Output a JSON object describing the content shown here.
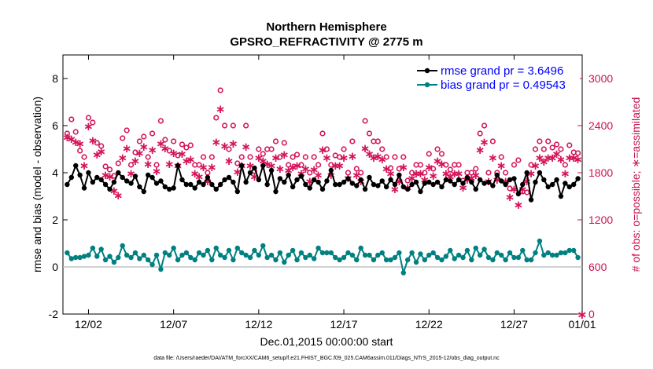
{
  "chart_data": {
    "type": "line",
    "title": "Northern Hemisphere",
    "subtitle": "GPSRO_REFRACTIVITY @ 2775 m",
    "xlabel": "Dec.01,2015 00:00:00 start",
    "ylabel": "rmse and bias (model - observation)",
    "ylabel_right": "# of obs: o=possible; ∗=assimilated",
    "xlim": [
      0.5,
      31.0
    ],
    "ylim": [
      -2,
      9
    ],
    "ylim_right": [
      0,
      3300
    ],
    "x_ticks": [
      2,
      7,
      12,
      17,
      22,
      27,
      31
    ],
    "x_tick_labels": [
      "12/02",
      "12/07",
      "12/12",
      "12/17",
      "12/22",
      "12/27",
      "01/01"
    ],
    "y_ticks": [
      -2,
      0,
      2,
      4,
      6,
      8
    ],
    "y_tick_labels": [
      "-2",
      "0",
      "2",
      "4",
      "6",
      "8"
    ],
    "y_right_ticks": [
      0,
      600,
      1200,
      1800,
      2400,
      3000
    ],
    "y_right_tick_labels": [
      "0",
      "600",
      "1200",
      "1800",
      "2400",
      "3000"
    ],
    "zero_line": 0,
    "legend_position": "top-right",
    "colors": {
      "rmse": "#000000",
      "bias": "#008080",
      "obs": "#d4145a",
      "zero": "#b8b8b8"
    },
    "series": [
      {
        "name": "rmse grand pr = 3.6496",
        "x": [
          0.75,
          1.0,
          1.25,
          1.5,
          1.75,
          2.0,
          2.25,
          2.5,
          2.75,
          3.0,
          3.25,
          3.5,
          3.75,
          4.0,
          4.25,
          4.5,
          4.75,
          5.0,
          5.25,
          5.5,
          5.75,
          6.0,
          6.25,
          6.5,
          6.75,
          7.0,
          7.25,
          7.5,
          7.75,
          8.0,
          8.25,
          8.5,
          8.75,
          9.0,
          9.25,
          9.5,
          9.75,
          10.0,
          10.25,
          10.5,
          10.75,
          11.0,
          11.25,
          11.5,
          11.75,
          12.0,
          12.25,
          12.5,
          12.75,
          13.0,
          13.25,
          13.5,
          13.75,
          14.0,
          14.25,
          14.5,
          14.75,
          15.0,
          15.25,
          15.5,
          15.75,
          16.0,
          16.25,
          16.5,
          16.75,
          17.0,
          17.25,
          17.5,
          17.75,
          18.0,
          18.25,
          18.5,
          18.75,
          19.0,
          19.25,
          19.5,
          19.75,
          20.0,
          20.25,
          20.5,
          20.75,
          21.0,
          21.25,
          21.5,
          21.75,
          22.0,
          22.25,
          22.5,
          22.75,
          23.0,
          23.25,
          23.5,
          23.75,
          24.0,
          24.25,
          24.5,
          24.75,
          25.0,
          25.25,
          25.5,
          25.75,
          26.0,
          26.25,
          26.5,
          26.75,
          27.0,
          27.25,
          27.5,
          27.75,
          28.0,
          28.25,
          28.5,
          28.75,
          29.0,
          29.25,
          29.5,
          29.75,
          30.0,
          30.25,
          30.5,
          30.75
        ],
        "values": [
          3.5,
          3.8,
          4.3,
          3.9,
          3.35,
          4.0,
          3.6,
          3.8,
          3.7,
          3.5,
          3.3,
          3.6,
          4.0,
          3.8,
          3.65,
          3.55,
          3.85,
          3.4,
          3.2,
          3.9,
          3.8,
          3.55,
          3.65,
          3.4,
          3.3,
          3.35,
          4.3,
          3.7,
          3.5,
          3.5,
          3.35,
          3.6,
          3.5,
          3.8,
          3.5,
          3.3,
          3.5,
          3.7,
          3.8,
          3.6,
          3.2,
          4.3,
          3.6,
          4.0,
          4.2,
          3.7,
          4.3,
          3.5,
          4.1,
          3.2,
          3.75,
          3.6,
          3.9,
          3.4,
          3.7,
          3.85,
          3.5,
          3.35,
          3.7,
          3.6,
          3.3,
          3.65,
          4.1,
          3.5,
          3.5,
          3.6,
          3.75,
          3.55,
          3.45,
          3.7,
          3.3,
          3.8,
          3.5,
          3.45,
          3.65,
          3.4,
          3.7,
          3.5,
          3.9,
          3.4,
          3.3,
          3.5,
          3.6,
          3.2,
          3.55,
          3.6,
          3.5,
          3.6,
          3.4,
          3.7,
          3.65,
          3.5,
          3.7,
          3.55,
          3.8,
          3.6,
          3.3,
          3.7,
          3.55,
          3.6,
          3.45,
          3.9,
          3.65,
          3.5,
          3.7,
          3.75,
          3.1,
          3.5,
          4.0,
          2.85,
          3.6,
          4.0,
          3.7,
          3.4,
          3.5,
          3.7,
          3.0,
          3.55,
          3.4,
          3.5,
          3.75
        ]
      },
      {
        "name": "bias grand pr = 0.49543",
        "x": [
          0.75,
          1.0,
          1.25,
          1.5,
          1.75,
          2.0,
          2.25,
          2.5,
          2.75,
          3.0,
          3.25,
          3.5,
          3.75,
          4.0,
          4.25,
          4.5,
          4.75,
          5.0,
          5.25,
          5.5,
          5.75,
          6.0,
          6.25,
          6.5,
          6.75,
          7.0,
          7.25,
          7.5,
          7.75,
          8.0,
          8.25,
          8.5,
          8.75,
          9.0,
          9.25,
          9.5,
          9.75,
          10.0,
          10.25,
          10.5,
          10.75,
          11.0,
          11.25,
          11.5,
          11.75,
          12.0,
          12.25,
          12.5,
          12.75,
          13.0,
          13.25,
          13.5,
          13.75,
          14.0,
          14.25,
          14.5,
          14.75,
          15.0,
          15.25,
          15.5,
          15.75,
          16.0,
          16.25,
          16.5,
          16.75,
          17.0,
          17.25,
          17.5,
          17.75,
          18.0,
          18.25,
          18.5,
          18.75,
          19.0,
          19.25,
          19.5,
          19.75,
          20.0,
          20.25,
          20.5,
          20.75,
          21.0,
          21.25,
          21.5,
          21.75,
          22.0,
          22.25,
          22.5,
          22.75,
          23.0,
          23.25,
          23.5,
          23.75,
          24.0,
          24.25,
          24.5,
          24.75,
          25.0,
          25.25,
          25.5,
          25.75,
          26.0,
          26.25,
          26.5,
          26.75,
          27.0,
          27.25,
          27.5,
          27.75,
          28.0,
          28.25,
          28.5,
          28.75,
          29.0,
          29.25,
          29.5,
          29.75,
          30.0,
          30.25,
          30.5,
          30.75
        ],
        "values": [
          0.6,
          0.35,
          0.4,
          0.4,
          0.45,
          0.5,
          0.8,
          0.45,
          0.75,
          0.3,
          0.45,
          0.2,
          0.4,
          0.9,
          0.5,
          0.4,
          0.6,
          0.35,
          0.5,
          0.3,
          0.1,
          0.5,
          -0.1,
          0.6,
          0.5,
          0.8,
          0.3,
          0.5,
          0.6,
          0.4,
          0.3,
          0.6,
          0.5,
          0.7,
          0.3,
          0.8,
          0.5,
          0.4,
          0.7,
          0.3,
          0.8,
          0.6,
          0.5,
          0.4,
          0.7,
          0.5,
          0.9,
          0.4,
          0.5,
          0.3,
          0.6,
          0.2,
          0.5,
          0.7,
          0.3,
          0.6,
          0.4,
          0.5,
          0.35,
          0.8,
          0.6,
          0.6,
          0.6,
          0.4,
          0.3,
          0.4,
          0.6,
          0.5,
          0.3,
          0.8,
          0.5,
          0.5,
          0.3,
          0.5,
          0.6,
          0.3,
          0.3,
          0.4,
          0.6,
          -0.25,
          0.3,
          0.6,
          0.2,
          0.55,
          0.3,
          0.5,
          0.6,
          0.4,
          0.3,
          0.45,
          0.7,
          0.35,
          0.5,
          0.4,
          0.7,
          0.3,
          0.8,
          0.5,
          0.75,
          0.4,
          0.3,
          0.6,
          0.5,
          0.3,
          0.6,
          0.4,
          0.4,
          0.7,
          0.3,
          0.3,
          0.6,
          1.1,
          0.5,
          0.6,
          0.5,
          0.5,
          0.6,
          0.6,
          0.7,
          0.7,
          0.4
        ]
      }
    ],
    "obs": {
      "x": [
        0.75,
        1.0,
        1.25,
        1.5,
        1.75,
        2.0,
        2.25,
        2.5,
        2.75,
        3.0,
        3.25,
        3.5,
        3.75,
        4.0,
        4.25,
        4.5,
        4.75,
        5.0,
        5.25,
        5.5,
        5.75,
        6.0,
        6.25,
        6.5,
        6.75,
        7.0,
        7.25,
        7.5,
        7.75,
        8.0,
        8.25,
        8.5,
        8.75,
        9.0,
        9.25,
        9.5,
        9.75,
        10.0,
        10.25,
        10.5,
        10.75,
        11.0,
        11.25,
        11.5,
        11.75,
        12.0,
        12.25,
        12.5,
        12.75,
        13.0,
        13.25,
        13.5,
        13.75,
        14.0,
        14.25,
        14.5,
        14.75,
        15.0,
        15.25,
        15.5,
        15.75,
        16.0,
        16.25,
        16.5,
        16.75,
        17.0,
        17.25,
        17.5,
        17.75,
        18.0,
        18.25,
        18.5,
        18.75,
        19.0,
        19.25,
        19.5,
        19.75,
        20.0,
        20.25,
        20.5,
        20.75,
        21.0,
        21.25,
        21.5,
        21.75,
        22.0,
        22.25,
        22.5,
        22.75,
        23.0,
        23.25,
        23.5,
        23.75,
        24.0,
        24.25,
        24.5,
        24.75,
        25.0,
        25.25,
        25.5,
        25.75,
        26.0,
        26.25,
        26.5,
        26.75,
        27.0,
        27.25,
        27.5,
        27.75,
        28.0,
        28.25,
        28.5,
        28.75,
        29.0,
        29.25,
        29.5,
        29.75,
        30.0,
        30.25,
        30.5,
        30.75
      ],
      "possible": [
        2300,
        2480,
        2320,
        2080,
        2000,
        2500,
        2440,
        2180,
        2140,
        1880,
        1840,
        1760,
        1920,
        2240,
        2340,
        1900,
        2060,
        2200,
        2260,
        2000,
        2300,
        1900,
        2460,
        2220,
        2080,
        2200,
        2020,
        2160,
        2120,
        2150,
        1900,
        1900,
        2000,
        1800,
        2000,
        2500,
        2850,
        2400,
        2100,
        2400,
        1920,
        2000,
        2400,
        2000,
        1820,
        2100,
        2040,
        2100,
        2100,
        2200,
        2000,
        2180,
        1900,
        2000,
        2030,
        1900,
        2000,
        1800,
        2000,
        1900,
        2300,
        2100,
        1900,
        2020,
        2000,
        2100,
        1800,
        2200,
        1850,
        1800,
        2460,
        2300,
        2200,
        2200,
        2100,
        2000,
        1860,
        2000,
        1850,
        2000,
        1700,
        1800,
        1900,
        1900,
        1800,
        2040,
        1850,
        2100,
        2040,
        1900,
        1840,
        1900,
        1900,
        1700,
        1800,
        1800,
        1850,
        2300,
        2400,
        1800,
        2200,
        1800,
        2000,
        1800,
        1600,
        1900,
        1960,
        1560,
        1550,
        1900,
        2100,
        2200,
        2100,
        2200,
        2120,
        2160,
        2100,
        1900,
        2150,
        2060,
        2050
      ],
      "assimilated": [
        2260,
        2240,
        2200,
        2180,
        1900,
        2400,
        2220,
        2040,
        2080,
        1780,
        1760,
        1580,
        1520,
        2000,
        2120,
        1800,
        1960,
        2060,
        2140,
        1920,
        2100,
        1830,
        2180,
        2120,
        1920,
        2060,
        1900,
        2050,
        1960,
        1980,
        1800,
        1760,
        1880,
        1700,
        1880,
        2200,
        2620,
        2150,
        1960,
        2180,
        1820,
        1900,
        2140,
        1900,
        1760,
        2000,
        1960,
        1920,
        1900,
        2000,
        1860,
        2040,
        1840,
        1880,
        1900,
        1800,
        1860,
        1700,
        1850,
        1780,
        2100,
        2000,
        1780,
        1900,
        1900,
        2000,
        1740,
        2020,
        1780,
        1700,
        2120,
        2050,
        2000,
        2020,
        1980,
        1860,
        1800,
        1600,
        1700,
        1880,
        1620,
        1740,
        1800,
        1800,
        1720,
        1880,
        1770,
        1960,
        1920,
        1800,
        1760,
        1800,
        1800,
        1620,
        1720,
        1740,
        1780,
        2100,
        2200,
        1700,
        2000,
        1720,
        1900,
        1700,
        1500,
        1600,
        1400,
        1600,
        1700,
        1800,
        1900,
        2000,
        1950,
        2000,
        2000,
        2050,
        1980,
        1800,
        2000,
        2000,
        1980
      ]
    },
    "footnote": "data file: /Users/raeder/DAI/ATM_forcXX/CAM6_setup/f.e21.FHIST_BGC.f09_025.CAM6assim.011/Diags_NTrS_2015-12/obs_diag_output.nc"
  }
}
